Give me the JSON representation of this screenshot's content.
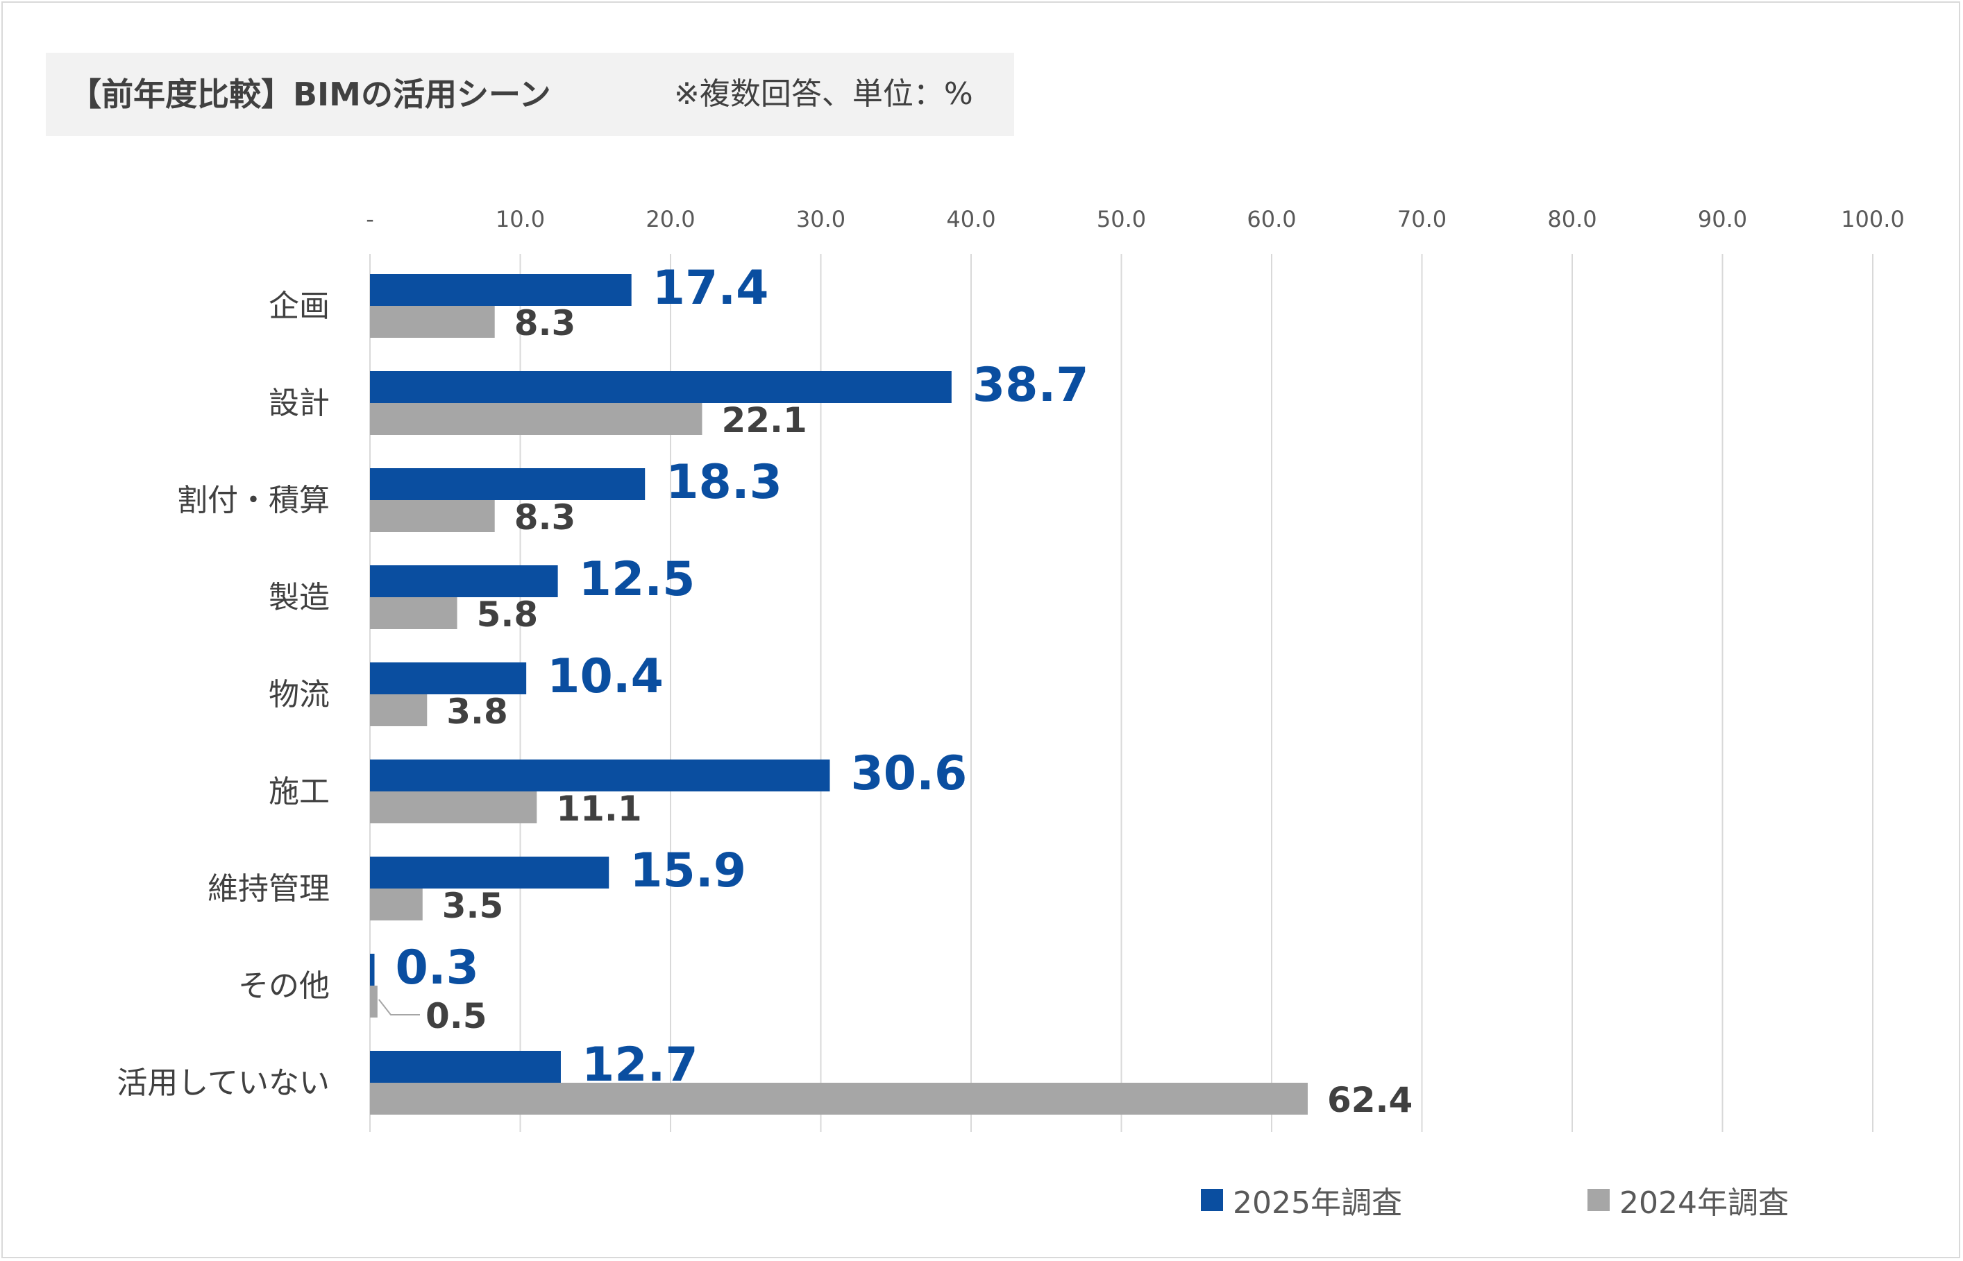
{
  "title": {
    "main": "【前年度比較】BIMの活用シーン",
    "note": "※複数回答、単位：%"
  },
  "colors": {
    "series_2025": "#0a4ea0",
    "series_2024": "#a6a6a6",
    "grid": "#d9d9d9",
    "label_2025": "#0a4ea0",
    "label_2024": "#404040"
  },
  "chart_data": {
    "type": "bar",
    "orientation": "horizontal",
    "categories": [
      "企画",
      "設計",
      "割付・積算",
      "製造",
      "物流",
      "施工",
      "維持管理",
      "その他",
      "活用していない"
    ],
    "series": [
      {
        "name": "2025年調査",
        "values": [
          17.4,
          38.7,
          18.3,
          12.5,
          10.4,
          30.6,
          15.9,
          0.3,
          12.7
        ]
      },
      {
        "name": "2024年調査",
        "values": [
          8.3,
          22.1,
          8.3,
          5.8,
          3.8,
          11.1,
          3.5,
          0.5,
          62.4
        ]
      }
    ],
    "data_labels_2025": [
      "17.4",
      "38.7",
      "18.3",
      "12.5",
      "10.4",
      "30.6",
      "15.9",
      "0.3",
      "12.7"
    ],
    "data_labels_2024": [
      "8.3",
      "22.1",
      "8.3",
      "5.8",
      "3.8",
      "11.1",
      "3.5",
      "0.5",
      "62.4"
    ],
    "xlim": [
      0,
      100
    ],
    "xticks": [
      0,
      10,
      20,
      30,
      40,
      50,
      60,
      70,
      80,
      90,
      100
    ],
    "xtick_labels": [
      "-",
      "10.0",
      "20.0",
      "30.0",
      "40.0",
      "50.0",
      "60.0",
      "70.0",
      "80.0",
      "90.0",
      "100.0"
    ],
    "grid": "vertical",
    "legend_position": "bottom-right"
  }
}
